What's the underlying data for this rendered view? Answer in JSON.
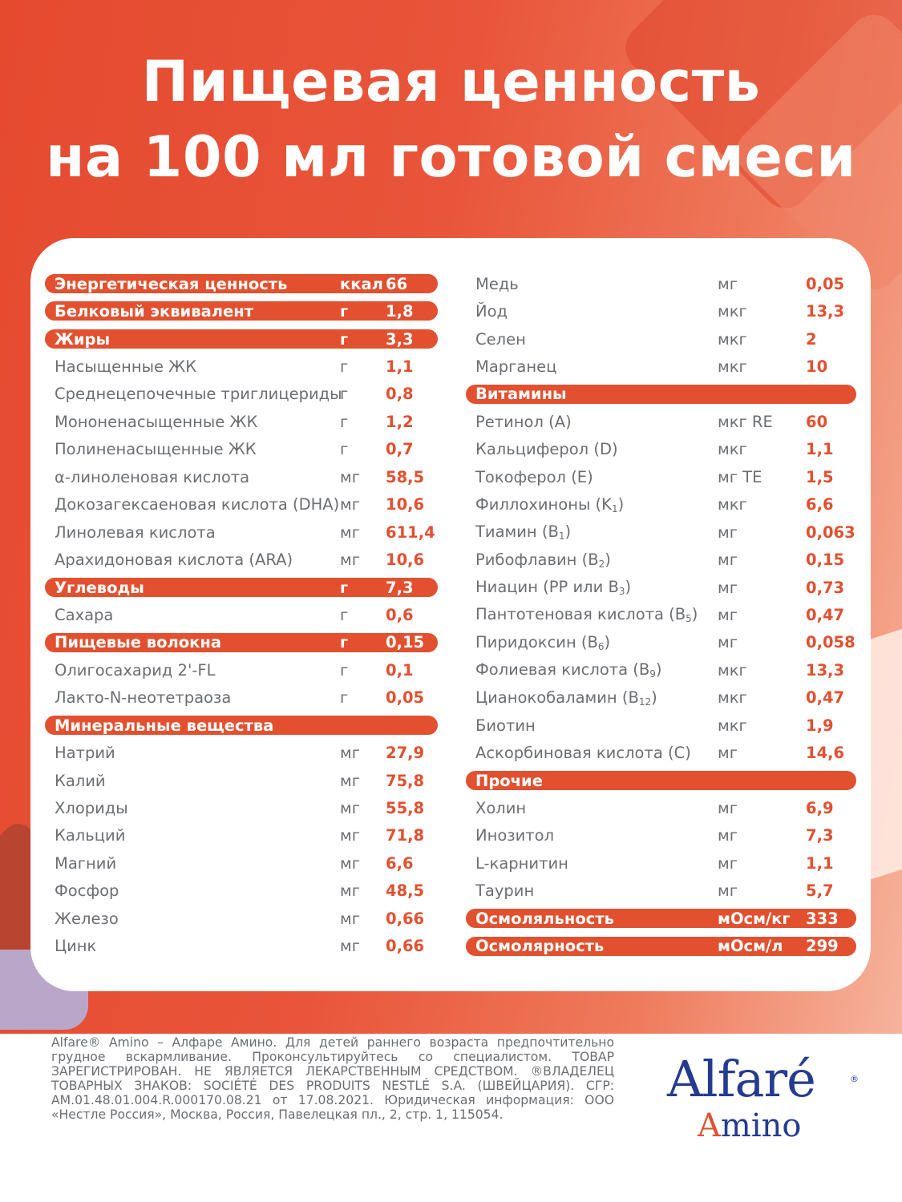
{
  "title": {
    "line1": "Пищевая ценность",
    "line2": "на 100 мл готовой смеси"
  },
  "colors": {
    "accent": "#e2502f",
    "text": "#6b6e72",
    "logo_blue": "#243b8f"
  },
  "left_column": [
    {
      "name": "Энергетическая ценность",
      "unit": "ккал",
      "value": "66",
      "highlight": true
    },
    {
      "name": "Белковый эквивалент",
      "unit": "г",
      "value": "1,8",
      "highlight": true
    },
    {
      "name": "Жиры",
      "unit": "г",
      "value": "3,3",
      "highlight": true
    },
    {
      "name": "Насыщенные ЖК",
      "unit": "г",
      "value": "1,1"
    },
    {
      "name": "Среднецепочечные триглицериды",
      "unit": "г",
      "value": "0,8"
    },
    {
      "name": "Мононенасыщенные ЖК",
      "unit": "г",
      "value": "1,2"
    },
    {
      "name": "Полиненасыщенные ЖК",
      "unit": "г",
      "value": "0,7"
    },
    {
      "name": "α-линоленовая кислота",
      "unit": "мг",
      "value": "58,5"
    },
    {
      "name": "Докозагексаеновая кислота (DHA)",
      "unit": "мг",
      "value": "10,6"
    },
    {
      "name": "Линолевая кислота",
      "unit": "мг",
      "value": "611,4"
    },
    {
      "name": "Арахидоновая кислота (ARA)",
      "unit": "мг",
      "value": "10,6"
    },
    {
      "name": "Углеводы",
      "unit": "г",
      "value": "7,3",
      "highlight": true
    },
    {
      "name": "Сахара",
      "unit": "г",
      "value": "0,6"
    },
    {
      "name": "Пищевые волокна",
      "unit": "г",
      "value": "0,15",
      "highlight": true
    },
    {
      "name": "Олигосахарид 2'-FL",
      "unit": "г",
      "value": "0,1"
    },
    {
      "name": "Лакто-N-неотетраоза",
      "unit": "г",
      "value": "0,05"
    },
    {
      "name": "Минеральные вещества",
      "unit": "",
      "value": "",
      "highlight": true
    },
    {
      "name": "Натрий",
      "unit": "мг",
      "value": "27,9"
    },
    {
      "name": "Калий",
      "unit": "мг",
      "value": "75,8"
    },
    {
      "name": "Хлориды",
      "unit": "мг",
      "value": "55,8"
    },
    {
      "name": "Кальций",
      "unit": "мг",
      "value": "71,8"
    },
    {
      "name": "Магний",
      "unit": "мг",
      "value": "6,6"
    },
    {
      "name": "Фосфор",
      "unit": "мг",
      "value": "48,5"
    },
    {
      "name": "Железо",
      "unit": "мг",
      "value": "0,66"
    },
    {
      "name": "Цинк",
      "unit": "мг",
      "value": "0,66"
    }
  ],
  "right_column": [
    {
      "name": "Медь",
      "unit": "мг",
      "value": "0,05"
    },
    {
      "name": "Йод",
      "unit": "мкг",
      "value": "13,3"
    },
    {
      "name": "Селен",
      "unit": "мкг",
      "value": "2"
    },
    {
      "name": "Марганец",
      "unit": "мкг",
      "value": "10"
    },
    {
      "name": "Витамины",
      "unit": "",
      "value": "",
      "highlight": true
    },
    {
      "name": "Ретинол (А)",
      "unit": "мкг RE",
      "value": "60"
    },
    {
      "name": "Кальциферол (D)",
      "unit": "мкг",
      "value": "1,1"
    },
    {
      "name": "Токоферол (E)",
      "unit": "мг TE",
      "value": "1,5"
    },
    {
      "name": "Филлохиноны (K",
      "sub": "1",
      "tail": ")",
      "unit": "мкг",
      "value": "6,6"
    },
    {
      "name": "Тиамин (B",
      "sub": "1",
      "tail": ")",
      "unit": "мг",
      "value": "0,063"
    },
    {
      "name": "Рибофлавин (B",
      "sub": "2",
      "tail": ")",
      "unit": "мг",
      "value": "0,15"
    },
    {
      "name": "Ниацин (PP или B",
      "sub": "3",
      "tail": ")",
      "unit": "мг",
      "value": "0,73"
    },
    {
      "name": "Пантотеновая кислота (B",
      "sub": "5",
      "tail": ")",
      "unit": "мг",
      "value": "0,47"
    },
    {
      "name": "Пиридоксин (B",
      "sub": "6",
      "tail": ")",
      "unit": "мг",
      "value": "0,058"
    },
    {
      "name": "Фолиевая кислота (B",
      "sub": "9",
      "tail": ")",
      "unit": "мкг",
      "value": "13,3"
    },
    {
      "name": "Цианокобаламин (B",
      "sub": "12",
      "tail": ")",
      "unit": "мкг",
      "value": "0,47"
    },
    {
      "name": "Биотин",
      "unit": "мкг",
      "value": "1,9"
    },
    {
      "name": "Аскорбиновая кислота (C)",
      "unit": "мг",
      "value": "14,6"
    },
    {
      "name": "Прочие",
      "unit": "",
      "value": "",
      "highlight": true
    },
    {
      "name": "Холин",
      "unit": "мг",
      "value": "6,9"
    },
    {
      "name": "Инозитол",
      "unit": "мг",
      "value": "7,3"
    },
    {
      "name": "L-карнитин",
      "unit": "мг",
      "value": "1,1"
    },
    {
      "name": "Таурин",
      "unit": "мг",
      "value": "5,7"
    },
    {
      "name": "Осмоляльность",
      "unit": "мОсм/кг",
      "value": "333",
      "highlight": true
    },
    {
      "name": "Осмолярность",
      "unit": "мОсм/л",
      "value": "299",
      "highlight": true
    }
  ],
  "footer": {
    "text": "Alfare® Amino – Алфаре Амино. Для детей раннего возраста предпочтительно грудное вскармливание. Проконсультируйтесь со специалистом. ТОВАР ЗАРЕГИСТРИРОВАН. НЕ ЯВЛЯЕТСЯ ЛЕКАРСТВЕННЫМ СРЕДСТВОМ. ®ВЛАДЕЛЕЦ ТОВАРНЫХ ЗНАКОВ: SOCIÉTÉ DES PRODUITS NESTLÉ S.A. (ШВЕЙЦАРИЯ). СГР: AM.01.48.01.004.R.000170.08.21 от 17.08.2021. Юридическая информация: ООО «Нестле Россия», Москва, Россия, Павелецкая пл., 2, стр. 1, 115054."
  },
  "logo": {
    "brand": "Alfaré",
    "reg": "®",
    "sub_first": "A",
    "sub_rest": "mino"
  }
}
